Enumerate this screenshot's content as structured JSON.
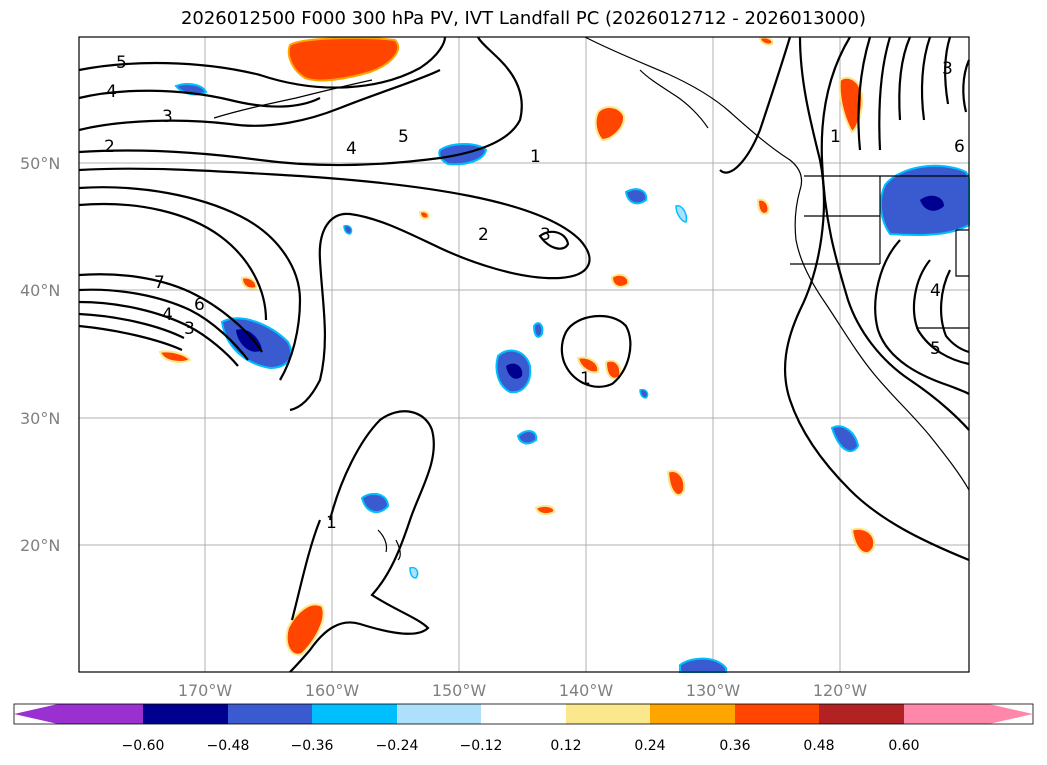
{
  "title": "2026012500 F000 300 hPa PV, IVT Landfall PC (2026012712 - 2026013000)",
  "map": {
    "lat_labels": [
      "50°N",
      "40°N",
      "30°N",
      "20°N"
    ],
    "lon_labels": [
      "170°W",
      "160°W",
      "150°W",
      "140°W",
      "130°W",
      "120°W"
    ],
    "contour_labels": [
      "5",
      "4",
      "3",
      "2",
      "4",
      "5",
      "1",
      "2",
      "3",
      "7",
      "6",
      "4",
      "3",
      "1",
      "1",
      "3",
      "6",
      "4",
      "5",
      "1"
    ]
  },
  "colorbar": {
    "ticks": [
      "−0.60",
      "−0.48",
      "−0.36",
      "−0.24",
      "−0.12",
      "0.12",
      "0.24",
      "0.36",
      "0.48",
      "0.60"
    ],
    "colors": [
      "#9b30d0",
      "#000090",
      "#3a5bd0",
      "#00bfff",
      "#aee0fb",
      "#ffffff",
      "#fbe78c",
      "#ffa500",
      "#ff4500",
      "#b22222",
      "#ff88aa"
    ]
  }
}
